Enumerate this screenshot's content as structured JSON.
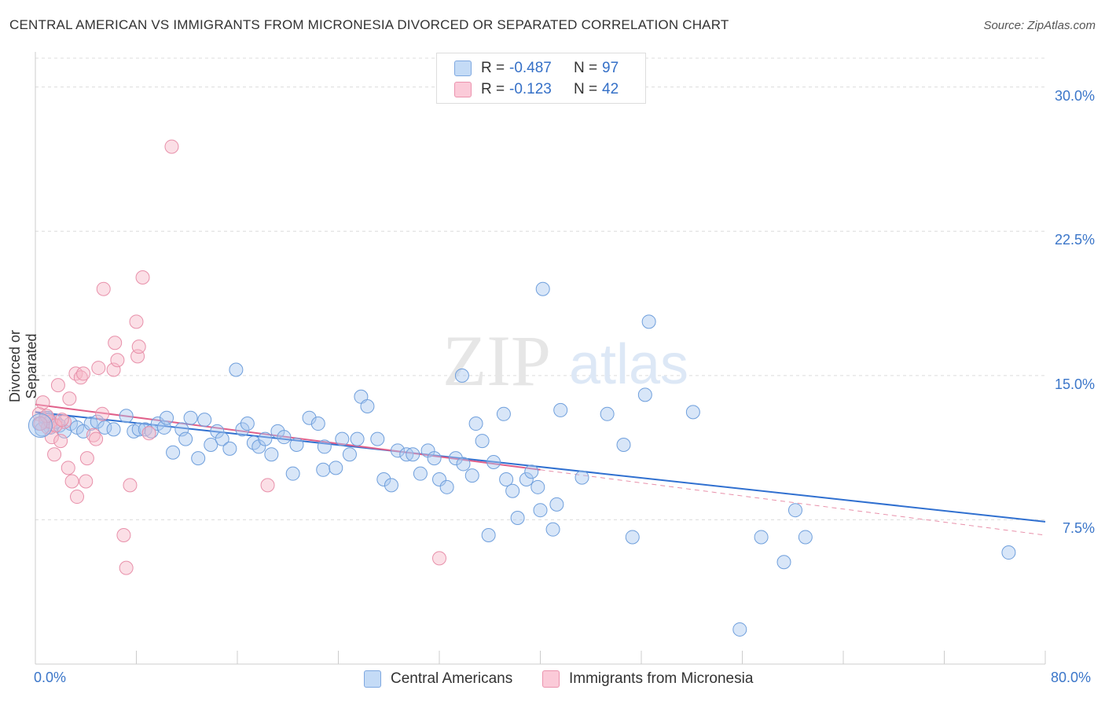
{
  "header": {
    "title": "CENTRAL AMERICAN VS IMMIGRANTS FROM MICRONESIA DIVORCED OR SEPARATED CORRELATION CHART",
    "source": "Source: ZipAtlas.com"
  },
  "legend": {
    "r_label": "R =",
    "n_label": "N =",
    "series": [
      {
        "r": "-0.487",
        "n": "97",
        "color": "#a8c8f0"
      },
      {
        "r": "-0.123",
        "n": "42",
        "color": "#f7b8c8"
      }
    ]
  },
  "watermark": {
    "zip": "ZIP",
    "atlas": "atlas"
  },
  "colors": {
    "blue": "#3b76c9",
    "blue_fill": "#a8c8f0",
    "pink": "#e0608a",
    "pink_fill": "#f7b8c8",
    "grid": "#dddddd"
  },
  "chart_data": {
    "type": "scatter",
    "title": "CENTRAL AMERICAN VS IMMIGRANTS FROM MICRONESIA DIVORCED OR SEPARATED CORRELATION CHART",
    "xlabel": "",
    "ylabel": "Divorced or Separated",
    "xlim": [
      0,
      80
    ],
    "ylim": [
      0,
      31.5
    ],
    "x_tick_labels": [
      "0.0%",
      "80.0%"
    ],
    "y_tick_values": [
      7.5,
      15.0,
      22.5,
      30.0
    ],
    "y_tick_labels": [
      "7.5%",
      "15.0%",
      "22.5%",
      "30.0%"
    ],
    "grid": true,
    "legend_position": "top-center",
    "series": [
      {
        "name": "Central Americans",
        "color": "#3b76c9",
        "trend": {
          "x": [
            0,
            80
          ],
          "y": [
            13.1,
            7.4
          ]
        },
        "points": [
          [
            0.3,
            12.5
          ],
          [
            0.8,
            12.8
          ],
          [
            1.2,
            12.3
          ],
          [
            1.6,
            12.6
          ],
          [
            1.9,
            12.4
          ],
          [
            2.3,
            12.1
          ],
          [
            2.8,
            12.5
          ],
          [
            3.3,
            12.3
          ],
          [
            3.8,
            12.1
          ],
          [
            4.4,
            12.5
          ],
          [
            4.9,
            12.6
          ],
          [
            5.5,
            12.3
          ],
          [
            6.2,
            12.2
          ],
          [
            7.2,
            12.9
          ],
          [
            7.8,
            12.1
          ],
          [
            8.2,
            12.2
          ],
          [
            8.7,
            12.2
          ],
          [
            9.2,
            12.1
          ],
          [
            9.7,
            12.5
          ],
          [
            10.2,
            12.3
          ],
          [
            10.4,
            12.8
          ],
          [
            10.9,
            11.0
          ],
          [
            11.6,
            12.2
          ],
          [
            11.9,
            11.7
          ],
          [
            12.3,
            12.8
          ],
          [
            12.9,
            10.7
          ],
          [
            13.4,
            12.7
          ],
          [
            13.9,
            11.4
          ],
          [
            14.4,
            12.1
          ],
          [
            14.8,
            11.7
          ],
          [
            15.4,
            11.2
          ],
          [
            15.9,
            15.3
          ],
          [
            16.4,
            12.2
          ],
          [
            16.8,
            12.5
          ],
          [
            17.3,
            11.5
          ],
          [
            17.7,
            11.3
          ],
          [
            18.2,
            11.7
          ],
          [
            18.7,
            10.9
          ],
          [
            19.2,
            12.1
          ],
          [
            19.7,
            11.8
          ],
          [
            20.4,
            9.9
          ],
          [
            20.7,
            11.4
          ],
          [
            21.7,
            12.8
          ],
          [
            22.4,
            12.5
          ],
          [
            22.8,
            10.1
          ],
          [
            22.9,
            11.3
          ],
          [
            23.8,
            10.2
          ],
          [
            24.3,
            11.7
          ],
          [
            24.9,
            10.9
          ],
          [
            25.5,
            11.7
          ],
          [
            25.8,
            13.9
          ],
          [
            26.3,
            13.4
          ],
          [
            27.1,
            11.7
          ],
          [
            27.6,
            9.6
          ],
          [
            28.2,
            9.3
          ],
          [
            28.7,
            11.1
          ],
          [
            29.4,
            10.9
          ],
          [
            29.9,
            10.9
          ],
          [
            30.5,
            9.9
          ],
          [
            31.1,
            11.1
          ],
          [
            31.6,
            10.7
          ],
          [
            32.0,
            9.6
          ],
          [
            32.6,
            9.2
          ],
          [
            33.3,
            10.7
          ],
          [
            33.9,
            10.4
          ],
          [
            33.8,
            15.0
          ],
          [
            34.6,
            9.8
          ],
          [
            34.9,
            12.5
          ],
          [
            35.4,
            11.6
          ],
          [
            35.9,
            6.7
          ],
          [
            36.3,
            10.5
          ],
          [
            37.1,
            13.0
          ],
          [
            37.3,
            9.6
          ],
          [
            37.8,
            9.0
          ],
          [
            38.2,
            7.6
          ],
          [
            38.9,
            9.6
          ],
          [
            39.3,
            10.0
          ],
          [
            39.8,
            9.2
          ],
          [
            40.0,
            8.0
          ],
          [
            40.2,
            19.5
          ],
          [
            41.0,
            7.0
          ],
          [
            41.3,
            8.3
          ],
          [
            41.6,
            13.2
          ],
          [
            43.3,
            9.7
          ],
          [
            45.3,
            13.0
          ],
          [
            46.6,
            11.4
          ],
          [
            47.3,
            6.6
          ],
          [
            48.6,
            17.8
          ],
          [
            48.3,
            14.0
          ],
          [
            52.1,
            13.1
          ],
          [
            57.5,
            6.6
          ],
          [
            59.3,
            5.3
          ],
          [
            60.2,
            8.0
          ],
          [
            61.0,
            6.6
          ],
          [
            55.8,
            1.8
          ],
          [
            77.1,
            5.8
          ],
          [
            0.5,
            12.2
          ],
          [
            1.0,
            12.8
          ]
        ]
      },
      {
        "name": "Immigrants from Micronesia",
        "color": "#e0608a",
        "trend": {
          "x": [
            0,
            80
          ],
          "y": [
            13.5,
            6.7
          ]
        },
        "trend_solid_until": 40,
        "points": [
          [
            0.3,
            13.0
          ],
          [
            0.6,
            13.6
          ],
          [
            0.8,
            12.6
          ],
          [
            1.0,
            12.3
          ],
          [
            1.3,
            11.8
          ],
          [
            1.5,
            10.9
          ],
          [
            1.8,
            14.5
          ],
          [
            2.0,
            11.6
          ],
          [
            2.3,
            12.6
          ],
          [
            2.6,
            10.2
          ],
          [
            2.7,
            13.8
          ],
          [
            2.9,
            9.5
          ],
          [
            3.2,
            15.1
          ],
          [
            3.3,
            8.7
          ],
          [
            3.6,
            14.9
          ],
          [
            3.8,
            15.1
          ],
          [
            4.0,
            9.5
          ],
          [
            4.1,
            10.7
          ],
          [
            4.6,
            11.9
          ],
          [
            4.8,
            11.7
          ],
          [
            5.0,
            15.4
          ],
          [
            5.3,
            13.0
          ],
          [
            5.4,
            19.5
          ],
          [
            6.2,
            15.3
          ],
          [
            6.3,
            16.7
          ],
          [
            6.5,
            15.8
          ],
          [
            7.0,
            6.7
          ],
          [
            7.2,
            5.0
          ],
          [
            7.5,
            9.3
          ],
          [
            8.0,
            17.8
          ],
          [
            8.1,
            16.0
          ],
          [
            8.2,
            16.5
          ],
          [
            8.5,
            20.1
          ],
          [
            9.0,
            12.0
          ],
          [
            10.8,
            26.9
          ],
          [
            18.4,
            9.3
          ],
          [
            32.0,
            5.5
          ],
          [
            1.2,
            12.6
          ],
          [
            1.6,
            12.4
          ],
          [
            0.9,
            12.9
          ],
          [
            2.1,
            12.7
          ],
          [
            0.4,
            12.5
          ]
        ]
      }
    ]
  }
}
